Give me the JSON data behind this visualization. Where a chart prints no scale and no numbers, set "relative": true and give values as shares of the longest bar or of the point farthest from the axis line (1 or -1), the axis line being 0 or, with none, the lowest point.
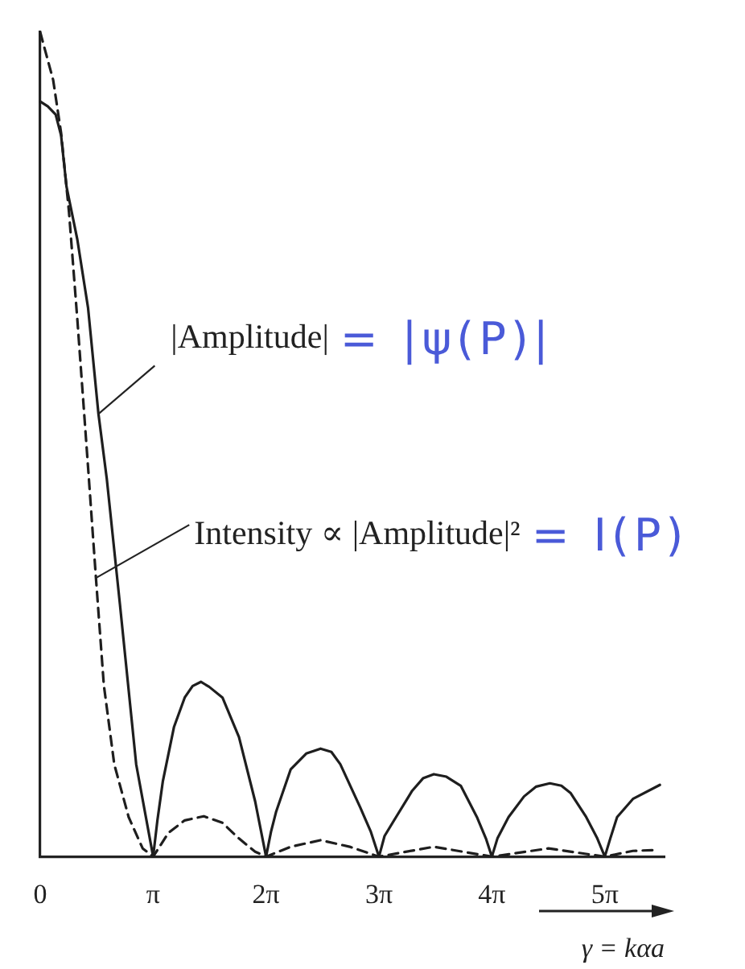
{
  "chart_data": {
    "type": "line",
    "relative": true,
    "xlabel": "γ = kαa",
    "xlim": [
      0,
      17.37
    ],
    "xticks": [
      0,
      {
        "value": 3.1416,
        "label": "π"
      },
      {
        "value": 6.2832,
        "label": "2π"
      },
      {
        "value": 9.4248,
        "label": "3π"
      },
      {
        "value": 12.566,
        "label": "4π"
      },
      {
        "value": 15.708,
        "label": "5π"
      }
    ],
    "series": [
      {
        "color": "#1e1e1e",
        "line_style": "solid",
        "x": [
          0,
          0.21,
          0.43,
          0.58,
          0.73,
          1.03,
          1.33,
          1.62,
          1.85,
          2.22,
          2.67,
          3.1416,
          3.26,
          3.41,
          3.72,
          4.02,
          4.24,
          4.47,
          4.7,
          5.07,
          5.53,
          5.98,
          6.2832,
          6.42,
          6.56,
          6.97,
          7.4,
          7.8,
          8.1,
          8.35,
          8.9,
          9.2,
          9.4248,
          9.58,
          9.9,
          10.35,
          10.65,
          10.95,
          11.3,
          11.7,
          12.15,
          12.4,
          12.566,
          12.72,
          13.03,
          13.46,
          13.8,
          14.18,
          14.5,
          14.76,
          15.19,
          15.5,
          15.708,
          15.86,
          16.05,
          16.49,
          17.24
        ],
        "values": [
          0.916,
          0.91,
          0.9,
          0.875,
          0.813,
          0.749,
          0.666,
          0.537,
          0.459,
          0.305,
          0.112,
          0,
          0.044,
          0.091,
          0.157,
          0.193,
          0.207,
          0.212,
          0.206,
          0.193,
          0.145,
          0.067,
          0,
          0.03,
          0.054,
          0.106,
          0.125,
          0.131,
          0.127,
          0.112,
          0.06,
          0.03,
          0,
          0.025,
          0.048,
          0.08,
          0.095,
          0.1,
          0.097,
          0.086,
          0.048,
          0.022,
          0,
          0.022,
          0.048,
          0.073,
          0.085,
          0.089,
          0.086,
          0.077,
          0.048,
          0.022,
          0,
          0.022,
          0.048,
          0.07,
          0.087
        ]
      },
      {
        "color": "#1e1e1e",
        "line_style": "dashed",
        "x": [
          0,
          0.36,
          0.58,
          0.8,
          1.03,
          1.32,
          1.55,
          1.77,
          2.06,
          2.46,
          2.85,
          3.1416,
          3.57,
          4.02,
          4.55,
          5.07,
          5.53,
          5.98,
          6.2832,
          6.97,
          7.8,
          8.61,
          9.4248,
          10.95,
          12.566,
          14.14,
          15.708,
          16.49,
          17.1
        ],
        "values": [
          1,
          0.942,
          0.878,
          0.782,
          0.653,
          0.479,
          0.338,
          0.208,
          0.112,
          0.048,
          0.01,
          0,
          0.029,
          0.044,
          0.049,
          0.041,
          0.022,
          0.006,
          0,
          0.012,
          0.02,
          0.012,
          0,
          0.012,
          0,
          0.01,
          0,
          0.007,
          0.008
        ]
      }
    ],
    "annotations": [
      {
        "text": "|Amplitude|",
        "x": 1.62,
        "y": 0.537
      },
      "= |ψ(P)|",
      {
        "text": "Intensity ∝ |Amplitude|²",
        "x": 1.55,
        "y": 0.338
      },
      "= I(P)"
    ],
    "grid": false,
    "legend": false,
    "marker": "none"
  }
}
